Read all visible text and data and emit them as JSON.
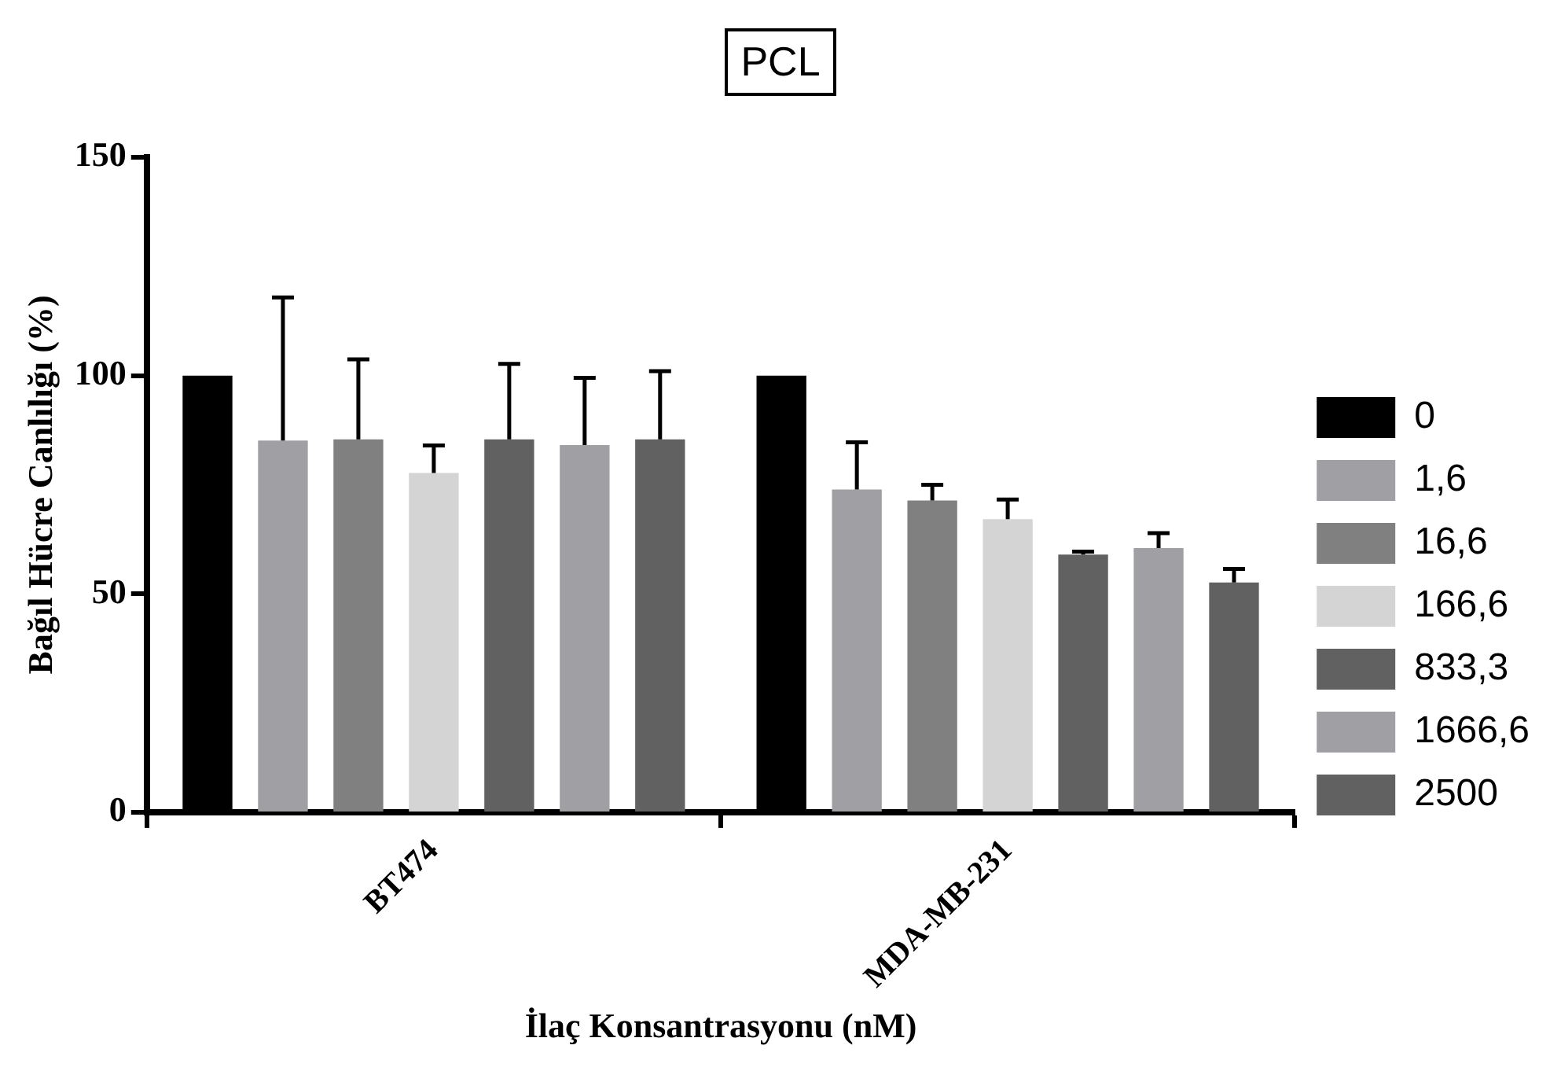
{
  "chart_data": {
    "type": "bar",
    "title": "PCL",
    "xlabel": "İlaç Konsantrasyonu (nM)",
    "ylabel": "Bağıl Hücre Canlılığı (%)",
    "categories": [
      "BT474",
      "MDA-MB-231"
    ],
    "series": [
      {
        "name": "0",
        "color": "#000000",
        "values": [
          100,
          100
        ]
      },
      {
        "name": "1,6",
        "color": "#a0a0a4",
        "values": [
          85.1,
          73.9
        ],
        "errors": [
          32.8,
          10.8
        ]
      },
      {
        "name": "16,6",
        "color": "#808080",
        "values": [
          85.4,
          71.4
        ],
        "errors": [
          18.3,
          3.6
        ]
      },
      {
        "name": "166,6",
        "color": "#d4d4d4",
        "values": [
          77.7,
          67.1
        ],
        "errors": [
          6.3,
          4.5
        ]
      },
      {
        "name": "833,3",
        "color": "#616161",
        "values": [
          85.4,
          59.0
        ],
        "errors": [
          17.3,
          0.7
        ]
      },
      {
        "name": "1666,6",
        "color": "#a0a0a4",
        "values": [
          84.1,
          60.5
        ],
        "errors": [
          15.4,
          3.4
        ]
      },
      {
        "name": "2500",
        "color": "#616161",
        "values": [
          85.4,
          52.6
        ],
        "errors": [
          15.6,
          3.1
        ]
      }
    ],
    "ylim": [
      0,
      150
    ],
    "yticks": [
      0,
      50,
      100,
      150
    ],
    "grid": false,
    "legend": "right"
  }
}
